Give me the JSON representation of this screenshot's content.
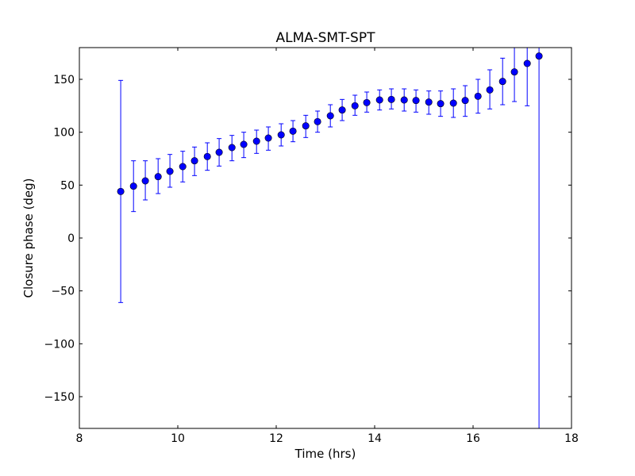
{
  "chart_data": {
    "type": "scatter",
    "title": "ALMA-SMT-SPT",
    "xlabel": "Time (hrs)",
    "ylabel": "Closure phase (deg)",
    "xlim": [
      8,
      18
    ],
    "ylim": [
      -180,
      180
    ],
    "xticks": [
      8,
      10,
      12,
      14,
      16,
      18
    ],
    "yticks": [
      -150,
      -100,
      -50,
      0,
      50,
      100,
      150
    ],
    "ytick_labels": [
      "−150",
      "−100",
      "−50",
      "0",
      "50",
      "100",
      "150"
    ],
    "grid": false,
    "color": "#0000ff",
    "series": [
      {
        "name": "closure phase",
        "x": [
          8.84,
          9.1,
          9.34,
          9.6,
          9.84,
          10.1,
          10.34,
          10.6,
          10.84,
          11.1,
          11.34,
          11.6,
          11.84,
          12.1,
          12.34,
          12.6,
          12.84,
          13.1,
          13.34,
          13.6,
          13.84,
          14.1,
          14.34,
          14.6,
          14.84,
          15.1,
          15.34,
          15.6,
          15.84,
          16.1,
          16.34,
          16.6,
          16.84,
          17.1,
          17.34
        ],
        "y": [
          44,
          49,
          54,
          58,
          63,
          67.5,
          73,
          77,
          81,
          85.5,
          88.5,
          91.5,
          94.5,
          97.5,
          101,
          106,
          110,
          115.5,
          121,
          125,
          128,
          130.5,
          131,
          130.5,
          130,
          128.5,
          127,
          127.5,
          130,
          134,
          140,
          148,
          157,
          165,
          172
        ],
        "y_low": [
          -61,
          25,
          36,
          42,
          48,
          53,
          59,
          64,
          68,
          73,
          76,
          80,
          83,
          87,
          91,
          95,
          100,
          105,
          111,
          116,
          119,
          121,
          122,
          120,
          119,
          117,
          115,
          114,
          115,
          118,
          122,
          126,
          129,
          125,
          -400
        ],
        "y_high": [
          149,
          73,
          73,
          75,
          79,
          82,
          86,
          90,
          94,
          97,
          100,
          102,
          105,
          108,
          111,
          116,
          120,
          126,
          131,
          135,
          138,
          140,
          141,
          141,
          140,
          139,
          139,
          141,
          144,
          150,
          159,
          170,
          200,
          200,
          200
        ]
      }
    ]
  }
}
